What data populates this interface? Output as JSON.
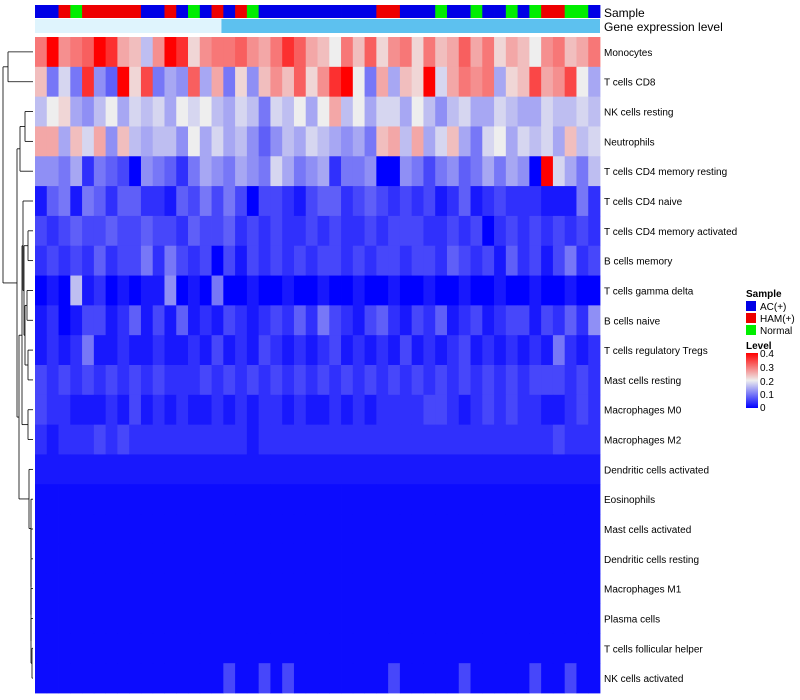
{
  "chart_data": {
    "type": "heatmap",
    "title": "",
    "annotation_tracks": [
      {
        "name": "Sample",
        "label": "Sample"
      },
      {
        "name": "Gene expression level",
        "label": "Gene expression level"
      }
    ],
    "sample_groups": [
      "AC(+)",
      "AC(+)",
      "HAM(+)",
      "Normal",
      "HAM(+)",
      "HAM(+)",
      "HAM(+)",
      "HAM(+)",
      "HAM(+)",
      "AC(+)",
      "AC(+)",
      "HAM(+)",
      "AC(+)",
      "Normal",
      "AC(+)",
      "HAM(+)",
      "AC(+)",
      "HAM(+)",
      "Normal",
      "AC(+)",
      "AC(+)",
      "AC(+)",
      "AC(+)",
      "AC(+)",
      "AC(+)",
      "AC(+)",
      "AC(+)",
      "AC(+)",
      "AC(+)",
      "HAM(+)",
      "HAM(+)",
      "AC(+)",
      "AC(+)",
      "AC(+)",
      "Normal",
      "AC(+)",
      "AC(+)",
      "Normal",
      "AC(+)",
      "AC(+)",
      "Normal",
      "AC(+)",
      "Normal",
      "HAM(+)",
      "HAM(+)",
      "Normal",
      "Normal",
      "AC(+)"
    ],
    "rows": [
      "Monocytes",
      "T cells CD8",
      "NK cells resting",
      "Neutrophils",
      "T cells CD4 memory resting",
      "T cells CD4 naive",
      "T cells CD4 memory activated",
      "B cells memory",
      "T cells gamma delta",
      "B cells naive",
      "T cells regulatory  Tregs",
      "Mast cells resting",
      "Macrophages M0",
      "Macrophages M2",
      "Dendritic cells activated",
      "Eosinophils",
      "Mast cells activated",
      "Dendritic cells resting",
      "Macrophages M1",
      "Plasma cells",
      "T cells follicular helper",
      "NK cells activated"
    ],
    "values": [
      [
        0.3,
        0.4,
        0.28,
        0.3,
        0.32,
        0.4,
        0.36,
        0.26,
        0.24,
        0.16,
        0.28,
        0.4,
        0.36,
        0.22,
        0.28,
        0.3,
        0.3,
        0.32,
        0.28,
        0.26,
        0.3,
        0.36,
        0.32,
        0.26,
        0.24,
        0.2,
        0.3,
        0.24,
        0.32,
        0.22,
        0.28,
        0.3,
        0.22,
        0.3,
        0.24,
        0.26,
        0.32,
        0.26,
        0.3,
        0.22,
        0.26,
        0.24,
        0.2,
        0.28,
        0.3,
        0.24,
        0.26,
        0.3
      ],
      [
        0.24,
        0.1,
        0.18,
        0.1,
        0.36,
        0.12,
        0.08,
        0.4,
        0.22,
        0.34,
        0.1,
        0.14,
        0.12,
        0.32,
        0.14,
        0.26,
        0.1,
        0.22,
        0.12,
        0.24,
        0.28,
        0.24,
        0.32,
        0.22,
        0.28,
        0.36,
        0.4,
        0.2,
        0.1,
        0.26,
        0.14,
        0.24,
        0.22,
        0.4,
        0.18,
        0.26,
        0.3,
        0.28,
        0.3,
        0.14,
        0.22,
        0.24,
        0.34,
        0.26,
        0.28,
        0.34,
        0.2,
        0.14
      ],
      [
        0.16,
        0.2,
        0.22,
        0.14,
        0.12,
        0.16,
        0.2,
        0.14,
        0.18,
        0.16,
        0.18,
        0.14,
        0.2,
        0.18,
        0.2,
        0.16,
        0.14,
        0.18,
        0.16,
        0.1,
        0.18,
        0.16,
        0.2,
        0.14,
        0.2,
        0.26,
        0.16,
        0.2,
        0.14,
        0.18,
        0.18,
        0.14,
        0.2,
        0.16,
        0.12,
        0.16,
        0.18,
        0.14,
        0.14,
        0.18,
        0.16,
        0.14,
        0.14,
        0.18,
        0.16,
        0.16,
        0.18,
        0.16
      ],
      [
        0.26,
        0.26,
        0.14,
        0.24,
        0.18,
        0.26,
        0.12,
        0.24,
        0.16,
        0.14,
        0.16,
        0.16,
        0.12,
        0.2,
        0.14,
        0.18,
        0.14,
        0.16,
        0.12,
        0.08,
        0.12,
        0.16,
        0.14,
        0.18,
        0.16,
        0.14,
        0.12,
        0.14,
        0.1,
        0.24,
        0.26,
        0.16,
        0.26,
        0.14,
        0.18,
        0.24,
        0.14,
        0.1,
        0.18,
        0.2,
        0.14,
        0.18,
        0.16,
        0.18,
        0.14,
        0.24,
        0.16,
        0.18
      ],
      [
        0.12,
        0.12,
        0.1,
        0.14,
        0.04,
        0.1,
        0.08,
        0.06,
        0.0,
        0.12,
        0.1,
        0.08,
        0.04,
        0.1,
        0.14,
        0.12,
        0.1,
        0.14,
        0.12,
        0.1,
        0.18,
        0.14,
        0.1,
        0.12,
        0.14,
        0.04,
        0.1,
        0.1,
        0.12,
        0.0,
        0.0,
        0.12,
        0.1,
        0.06,
        0.1,
        0.12,
        0.08,
        0.1,
        0.14,
        0.1,
        0.14,
        0.12,
        0.0,
        0.4,
        0.18,
        0.14,
        0.1,
        0.16
      ],
      [
        0.02,
        0.08,
        0.1,
        0.02,
        0.1,
        0.08,
        0.04,
        0.08,
        0.08,
        0.04,
        0.04,
        0.02,
        0.08,
        0.06,
        0.1,
        0.06,
        0.1,
        0.06,
        0.0,
        0.06,
        0.06,
        0.04,
        0.02,
        0.06,
        0.08,
        0.08,
        0.04,
        0.06,
        0.08,
        0.06,
        0.04,
        0.06,
        0.04,
        0.06,
        0.02,
        0.04,
        0.08,
        0.02,
        0.04,
        0.06,
        0.04,
        0.04,
        0.04,
        0.02,
        0.02,
        0.02,
        0.1,
        0.04
      ],
      [
        0.06,
        0.04,
        0.06,
        0.08,
        0.06,
        0.06,
        0.08,
        0.06,
        0.06,
        0.08,
        0.06,
        0.06,
        0.04,
        0.08,
        0.06,
        0.06,
        0.08,
        0.04,
        0.06,
        0.04,
        0.06,
        0.04,
        0.04,
        0.06,
        0.04,
        0.06,
        0.04,
        0.04,
        0.06,
        0.04,
        0.06,
        0.06,
        0.06,
        0.04,
        0.04,
        0.06,
        0.04,
        0.06,
        0.0,
        0.04,
        0.06,
        0.04,
        0.06,
        0.04,
        0.06,
        0.04,
        0.06,
        0.04
      ],
      [
        0.04,
        0.06,
        0.04,
        0.06,
        0.04,
        0.08,
        0.04,
        0.06,
        0.06,
        0.1,
        0.04,
        0.1,
        0.06,
        0.04,
        0.06,
        0.0,
        0.06,
        0.02,
        0.06,
        0.04,
        0.06,
        0.04,
        0.06,
        0.04,
        0.06,
        0.06,
        0.04,
        0.06,
        0.04,
        0.06,
        0.06,
        0.04,
        0.06,
        0.06,
        0.04,
        0.08,
        0.06,
        0.04,
        0.06,
        0.02,
        0.08,
        0.04,
        0.06,
        0.02,
        0.06,
        0.1,
        0.04,
        0.06
      ],
      [
        0.0,
        0.02,
        0.0,
        0.16,
        0.02,
        0.04,
        0.0,
        0.02,
        0.0,
        0.02,
        0.02,
        0.12,
        0.0,
        0.02,
        0.0,
        0.1,
        0.0,
        0.0,
        0.02,
        0.0,
        0.0,
        0.02,
        0.0,
        0.0,
        0.02,
        0.0,
        0.0,
        0.02,
        0.0,
        0.0,
        0.02,
        0.0,
        0.0,
        0.02,
        0.0,
        0.0,
        0.02,
        0.0,
        0.0,
        0.02,
        0.0,
        0.0,
        0.02,
        0.0,
        0.0,
        0.02,
        0.0,
        0.0
      ],
      [
        0.02,
        0.04,
        0.0,
        0.02,
        0.06,
        0.06,
        0.02,
        0.04,
        0.08,
        0.02,
        0.06,
        0.02,
        0.08,
        0.02,
        0.04,
        0.02,
        0.06,
        0.04,
        0.02,
        0.04,
        0.06,
        0.04,
        0.08,
        0.04,
        0.1,
        0.06,
        0.04,
        0.02,
        0.06,
        0.08,
        0.04,
        0.02,
        0.06,
        0.04,
        0.08,
        0.02,
        0.04,
        0.06,
        0.02,
        0.04,
        0.06,
        0.06,
        0.02,
        0.06,
        0.04,
        0.08,
        0.04,
        0.12
      ],
      [
        0.02,
        0.04,
        0.02,
        0.04,
        0.1,
        0.02,
        0.02,
        0.04,
        0.02,
        0.02,
        0.04,
        0.02,
        0.02,
        0.04,
        0.02,
        0.06,
        0.02,
        0.04,
        0.02,
        0.06,
        0.04,
        0.02,
        0.04,
        0.02,
        0.04,
        0.06,
        0.02,
        0.04,
        0.02,
        0.04,
        0.02,
        0.06,
        0.02,
        0.04,
        0.02,
        0.04,
        0.06,
        0.02,
        0.04,
        0.02,
        0.04,
        0.02,
        0.04,
        0.02,
        0.1,
        0.04,
        0.02,
        0.04
      ],
      [
        0.06,
        0.04,
        0.06,
        0.04,
        0.06,
        0.04,
        0.06,
        0.04,
        0.06,
        0.04,
        0.06,
        0.04,
        0.04,
        0.04,
        0.06,
        0.04,
        0.06,
        0.04,
        0.06,
        0.04,
        0.06,
        0.04,
        0.06,
        0.04,
        0.06,
        0.04,
        0.06,
        0.04,
        0.06,
        0.04,
        0.06,
        0.04,
        0.06,
        0.04,
        0.06,
        0.04,
        0.06,
        0.04,
        0.06,
        0.04,
        0.06,
        0.04,
        0.06,
        0.06,
        0.06,
        0.04,
        0.06,
        0.04
      ],
      [
        0.06,
        0.04,
        0.04,
        0.02,
        0.02,
        0.02,
        0.04,
        0.02,
        0.06,
        0.02,
        0.04,
        0.02,
        0.04,
        0.02,
        0.02,
        0.04,
        0.02,
        0.04,
        0.02,
        0.04,
        0.04,
        0.02,
        0.04,
        0.02,
        0.02,
        0.04,
        0.02,
        0.04,
        0.02,
        0.04,
        0.04,
        0.04,
        0.04,
        0.06,
        0.06,
        0.04,
        0.02,
        0.04,
        0.06,
        0.04,
        0.06,
        0.04,
        0.04,
        0.02,
        0.02,
        0.04,
        0.06,
        0.04
      ],
      [
        0.04,
        0.02,
        0.04,
        0.04,
        0.04,
        0.06,
        0.04,
        0.06,
        0.04,
        0.04,
        0.04,
        0.04,
        0.04,
        0.04,
        0.04,
        0.04,
        0.04,
        0.04,
        0.02,
        0.04,
        0.04,
        0.04,
        0.04,
        0.04,
        0.04,
        0.04,
        0.04,
        0.04,
        0.04,
        0.04,
        0.04,
        0.04,
        0.04,
        0.04,
        0.04,
        0.04,
        0.04,
        0.04,
        0.04,
        0.04,
        0.04,
        0.04,
        0.04,
        0.04,
        0.06,
        0.04,
        0.04,
        0.04
      ],
      [
        0.02,
        0.02,
        0.02,
        0.02,
        0.02,
        0.02,
        0.02,
        0.02,
        0.02,
        0.02,
        0.02,
        0.02,
        0.02,
        0.02,
        0.02,
        0.02,
        0.02,
        0.02,
        0.02,
        0.02,
        0.02,
        0.02,
        0.02,
        0.02,
        0.02,
        0.02,
        0.02,
        0.02,
        0.02,
        0.02,
        0.02,
        0.02,
        0.02,
        0.02,
        0.02,
        0.02,
        0.02,
        0.02,
        0.02,
        0.02,
        0.02,
        0.02,
        0.02,
        0.02,
        0.02,
        0.02,
        0.02,
        0.02
      ],
      [
        0.01,
        0.01,
        0.01,
        0.01,
        0.01,
        0.01,
        0.01,
        0.01,
        0.01,
        0.01,
        0.01,
        0.01,
        0.01,
        0.01,
        0.01,
        0.01,
        0.01,
        0.01,
        0.01,
        0.01,
        0.01,
        0.01,
        0.01,
        0.01,
        0.01,
        0.01,
        0.01,
        0.01,
        0.01,
        0.01,
        0.01,
        0.01,
        0.01,
        0.01,
        0.01,
        0.01,
        0.01,
        0.01,
        0.01,
        0.01,
        0.01,
        0.01,
        0.01,
        0.01,
        0.01,
        0.01,
        0.01,
        0.01
      ],
      [
        0.01,
        0.01,
        0.01,
        0.01,
        0.01,
        0.01,
        0.01,
        0.01,
        0.01,
        0.01,
        0.01,
        0.01,
        0.01,
        0.01,
        0.01,
        0.01,
        0.01,
        0.01,
        0.01,
        0.01,
        0.01,
        0.01,
        0.01,
        0.01,
        0.01,
        0.01,
        0.01,
        0.01,
        0.01,
        0.01,
        0.01,
        0.01,
        0.01,
        0.01,
        0.01,
        0.01,
        0.01,
        0.01,
        0.01,
        0.01,
        0.01,
        0.01,
        0.01,
        0.01,
        0.01,
        0.01,
        0.01,
        0.01
      ],
      [
        0.01,
        0.01,
        0.01,
        0.01,
        0.01,
        0.01,
        0.01,
        0.01,
        0.01,
        0.01,
        0.01,
        0.01,
        0.01,
        0.01,
        0.01,
        0.01,
        0.01,
        0.01,
        0.01,
        0.01,
        0.01,
        0.01,
        0.01,
        0.01,
        0.01,
        0.01,
        0.01,
        0.01,
        0.01,
        0.01,
        0.01,
        0.01,
        0.01,
        0.01,
        0.01,
        0.01,
        0.01,
        0.01,
        0.01,
        0.01,
        0.01,
        0.01,
        0.01,
        0.01,
        0.01,
        0.01,
        0.01,
        0.01
      ],
      [
        0.01,
        0.01,
        0.01,
        0.01,
        0.01,
        0.01,
        0.01,
        0.01,
        0.01,
        0.01,
        0.01,
        0.01,
        0.01,
        0.01,
        0.01,
        0.01,
        0.01,
        0.01,
        0.01,
        0.01,
        0.01,
        0.01,
        0.01,
        0.01,
        0.01,
        0.01,
        0.01,
        0.01,
        0.01,
        0.01,
        0.01,
        0.01,
        0.01,
        0.01,
        0.01,
        0.01,
        0.01,
        0.01,
        0.01,
        0.01,
        0.01,
        0.01,
        0.01,
        0.01,
        0.01,
        0.01,
        0.01,
        0.01
      ],
      [
        0.01,
        0.01,
        0.01,
        0.01,
        0.01,
        0.01,
        0.01,
        0.01,
        0.01,
        0.01,
        0.01,
        0.01,
        0.01,
        0.01,
        0.01,
        0.01,
        0.01,
        0.01,
        0.01,
        0.01,
        0.01,
        0.01,
        0.01,
        0.01,
        0.01,
        0.01,
        0.01,
        0.01,
        0.01,
        0.01,
        0.01,
        0.01,
        0.01,
        0.01,
        0.01,
        0.01,
        0.01,
        0.01,
        0.01,
        0.01,
        0.01,
        0.01,
        0.01,
        0.01,
        0.01,
        0.01,
        0.01,
        0.01
      ],
      [
        0.01,
        0.01,
        0.01,
        0.01,
        0.01,
        0.01,
        0.01,
        0.01,
        0.01,
        0.01,
        0.01,
        0.01,
        0.01,
        0.01,
        0.01,
        0.01,
        0.01,
        0.01,
        0.01,
        0.01,
        0.01,
        0.01,
        0.01,
        0.01,
        0.01,
        0.01,
        0.01,
        0.01,
        0.01,
        0.01,
        0.01,
        0.01,
        0.01,
        0.01,
        0.01,
        0.01,
        0.01,
        0.01,
        0.01,
        0.01,
        0.01,
        0.01,
        0.01,
        0.01,
        0.01,
        0.01,
        0.01,
        0.01
      ],
      [
        0.01,
        0.01,
        0.01,
        0.01,
        0.01,
        0.01,
        0.01,
        0.01,
        0.01,
        0.01,
        0.01,
        0.01,
        0.01,
        0.01,
        0.01,
        0.01,
        0.06,
        0.01,
        0.01,
        0.06,
        0.01,
        0.06,
        0.01,
        0.01,
        0.01,
        0.01,
        0.01,
        0.01,
        0.01,
        0.01,
        0.06,
        0.01,
        0.01,
        0.01,
        0.01,
        0.01,
        0.06,
        0.01,
        0.01,
        0.01,
        0.01,
        0.01,
        0.06,
        0.01,
        0.01,
        0.06,
        0.01,
        0.01
      ]
    ],
    "color_scale": {
      "min": 0,
      "max": 0.4,
      "low": "#0000ff",
      "mid": "#eeeeee",
      "high": "#ff0000"
    },
    "legend": {
      "position": "right",
      "sample_title": "Sample",
      "sample_entries": [
        {
          "label": "AC(+)",
          "color": "#0000e6"
        },
        {
          "label": "HAM(+)",
          "color": "#ee0000"
        },
        {
          "label": "Normal",
          "color": "#00ee00"
        }
      ],
      "level_title": "Level",
      "level_ticks": [
        "0.4",
        "0.3",
        "0.2",
        "0.1",
        "0"
      ]
    },
    "expression_track_color": "#5dc1ef"
  }
}
